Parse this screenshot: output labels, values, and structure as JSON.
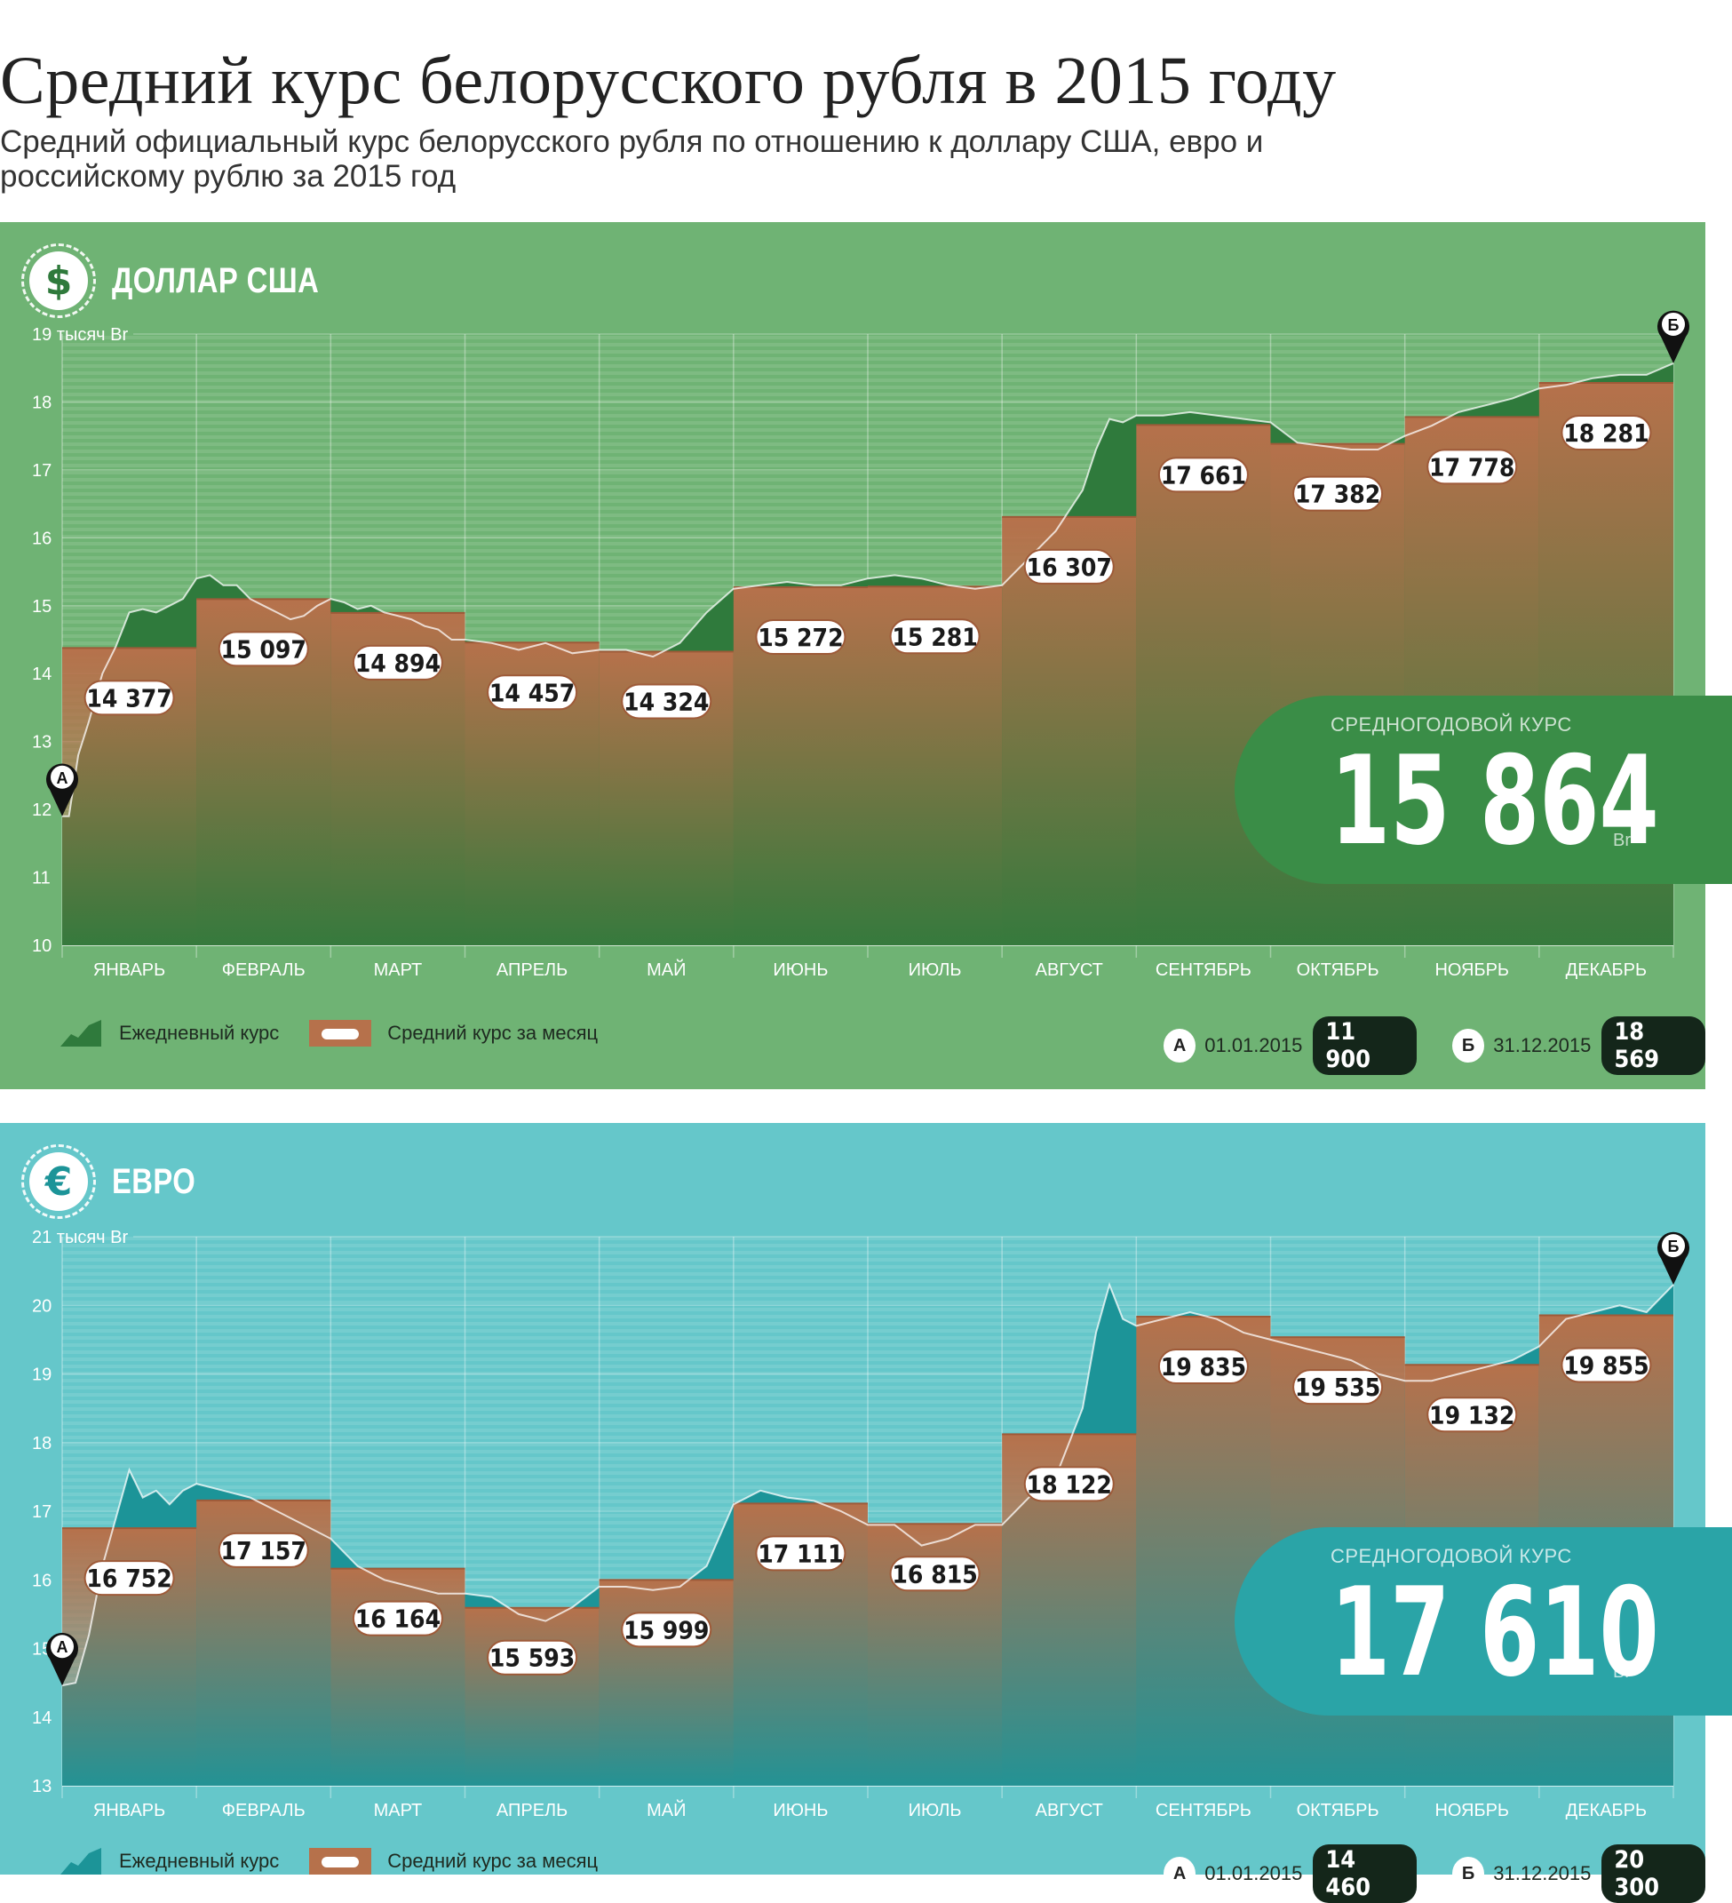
{
  "title": "Средний курс белорусского рубля в 2015 году",
  "subtitle": "Средний официальный курс белорусского рубля по отношению к доллару США, евро и российскому рублю за 2015 год",
  "legend": {
    "daily": "Ежедневный курс",
    "monthly": "Средний курс за месяц"
  },
  "colors": {
    "usd_bg": "#6fb374",
    "usd_dark": "#2f7a3c",
    "eur_bg": "#65c7ca",
    "eur_dark": "#1c9498",
    "bar": "#b6714b",
    "label_dark": "#14261a"
  },
  "chart_data": [
    {
      "type": "area",
      "currency": "ДОЛЛАР США",
      "icon": "dollar-icon",
      "icon_glyph": "$",
      "unit_label": "19 тысяч Br",
      "categories": [
        "ЯНВАРЬ",
        "ФЕВРАЛЬ",
        "МАРТ",
        "АПРЕЛЬ",
        "МАЙ",
        "ИЮНЬ",
        "ИЮЛЬ",
        "АВГУСТ",
        "СЕНТЯБРЬ",
        "ОКТЯБРЬ",
        "НОЯБРЬ",
        "ДЕКАБРЬ"
      ],
      "ylim": [
        10,
        19
      ],
      "yticks": [
        10,
        11,
        12,
        13,
        14,
        15,
        16,
        17,
        18
      ],
      "series": [
        {
          "name": "Средний курс за месяц",
          "values": [
            14377,
            15097,
            14894,
            14457,
            14324,
            15272,
            15281,
            16307,
            17661,
            17382,
            17778,
            18281
          ],
          "labels": [
            "14 377",
            "15 097",
            "14 894",
            "14 457",
            "14 324",
            "15 272",
            "15 281",
            "16 307",
            "17 661",
            "17 382",
            "17 778",
            "18 281"
          ]
        },
        {
          "name": "Ежедневный курс",
          "x": [
            0,
            0.05,
            0.12,
            0.2,
            0.3,
            0.4,
            0.5,
            0.6,
            0.7,
            0.8,
            0.9,
            1.0,
            1.1,
            1.2,
            1.3,
            1.4,
            1.5,
            1.6,
            1.7,
            1.8,
            1.9,
            2.0,
            2.1,
            2.2,
            2.3,
            2.4,
            2.5,
            2.6,
            2.7,
            2.8,
            2.9,
            3.0,
            3.2,
            3.4,
            3.6,
            3.8,
            4.0,
            4.2,
            4.4,
            4.6,
            4.8,
            5.0,
            5.2,
            5.4,
            5.6,
            5.8,
            6.0,
            6.2,
            6.4,
            6.6,
            6.8,
            7.0,
            7.2,
            7.4,
            7.6,
            7.7,
            7.8,
            7.9,
            8.0,
            8.2,
            8.4,
            8.6,
            8.8,
            9.0,
            9.2,
            9.4,
            9.6,
            9.8,
            10.0,
            10.2,
            10.4,
            10.6,
            10.8,
            11.0,
            11.2,
            11.4,
            11.6,
            11.8,
            12.0
          ],
          "values": [
            11900,
            11900,
            12800,
            13300,
            14000,
            14400,
            14900,
            14950,
            14900,
            15000,
            15100,
            15400,
            15450,
            15300,
            15300,
            15100,
            15000,
            14900,
            14800,
            14850,
            15000,
            15100,
            15050,
            14950,
            15000,
            14900,
            14850,
            14800,
            14700,
            14650,
            14500,
            14500,
            14450,
            14350,
            14450,
            14300,
            14350,
            14350,
            14250,
            14450,
            14900,
            15250,
            15300,
            15350,
            15300,
            15300,
            15400,
            15450,
            15400,
            15300,
            15250,
            15300,
            15700,
            16100,
            16700,
            17300,
            17750,
            17700,
            17800,
            17800,
            17850,
            17800,
            17750,
            17700,
            17400,
            17350,
            17300,
            17300,
            17500,
            17650,
            17850,
            17950,
            18050,
            18200,
            18250,
            18350,
            18400,
            18400,
            18569
          ]
        }
      ],
      "average": {
        "label": "СРЕДНОГОДОВОЙ КУРС",
        "value": "15 864",
        "unit": "Br"
      },
      "start": {
        "marker": "А",
        "date": "01.01.2015",
        "value": "11 900"
      },
      "end": {
        "marker": "Б",
        "date": "31.12.2015",
        "value": "18 569"
      }
    },
    {
      "type": "area",
      "currency": "ЕВРО",
      "icon": "euro-icon",
      "icon_glyph": "€",
      "unit_label": "21 тысяч Br",
      "categories": [
        "ЯНВАРЬ",
        "ФЕВРАЛЬ",
        "МАРТ",
        "АПРЕЛЬ",
        "МАЙ",
        "ИЮНЬ",
        "ИЮЛЬ",
        "АВГУСТ",
        "СЕНТЯБРЬ",
        "ОКТЯБРЬ",
        "НОЯБРЬ",
        "ДЕКАБРЬ"
      ],
      "ylim": [
        13,
        21
      ],
      "yticks": [
        13,
        14,
        15,
        16,
        17,
        18,
        19,
        20
      ],
      "series": [
        {
          "name": "Средний курс за месяц",
          "values": [
            16752,
            17157,
            16164,
            15593,
            15999,
            17111,
            16815,
            18122,
            19835,
            19535,
            19132,
            19855
          ],
          "labels": [
            "16 752",
            "17 157",
            "16 164",
            "15 593",
            "15 999",
            "17 111",
            "16 815",
            "18 122",
            "19 835",
            "19 535",
            "19 132",
            "19 855"
          ]
        },
        {
          "name": "Ежедневный курс",
          "x": [
            0,
            0.1,
            0.2,
            0.3,
            0.4,
            0.5,
            0.6,
            0.7,
            0.8,
            0.9,
            1.0,
            1.2,
            1.4,
            1.6,
            1.8,
            2.0,
            2.2,
            2.4,
            2.6,
            2.8,
            3.0,
            3.2,
            3.4,
            3.6,
            3.8,
            4.0,
            4.2,
            4.4,
            4.6,
            4.8,
            5.0,
            5.2,
            5.4,
            5.6,
            5.8,
            6.0,
            6.2,
            6.4,
            6.6,
            6.8,
            7.0,
            7.2,
            7.4,
            7.6,
            7.7,
            7.8,
            7.9,
            8.0,
            8.2,
            8.4,
            8.6,
            8.8,
            9.0,
            9.2,
            9.4,
            9.6,
            9.8,
            10.0,
            10.2,
            10.4,
            10.6,
            10.8,
            11.0,
            11.2,
            11.4,
            11.6,
            11.8,
            12.0
          ],
          "values": [
            14460,
            14500,
            15200,
            16200,
            16900,
            17600,
            17200,
            17300,
            17100,
            17300,
            17400,
            17300,
            17200,
            17000,
            16800,
            16600,
            16200,
            16000,
            15900,
            15800,
            15800,
            15750,
            15500,
            15400,
            15600,
            15900,
            15900,
            15850,
            15900,
            16200,
            17100,
            17300,
            17200,
            17150,
            17000,
            16800,
            16800,
            16500,
            16600,
            16800,
            16800,
            17200,
            17500,
            18500,
            19600,
            20300,
            19800,
            19700,
            19800,
            19900,
            19800,
            19600,
            19500,
            19400,
            19300,
            19200,
            19000,
            18900,
            18900,
            19000,
            19100,
            19200,
            19400,
            19800,
            19900,
            20000,
            19900,
            20300
          ]
        }
      ],
      "average": {
        "label": "СРЕДНОГОДОВОЙ КУРС",
        "value": "17 610",
        "unit": "Br"
      },
      "start": {
        "marker": "А",
        "date": "01.01.2015",
        "value": "14 460"
      },
      "end": {
        "marker": "Б",
        "date": "31.12.2015",
        "value": "20 300"
      }
    }
  ]
}
